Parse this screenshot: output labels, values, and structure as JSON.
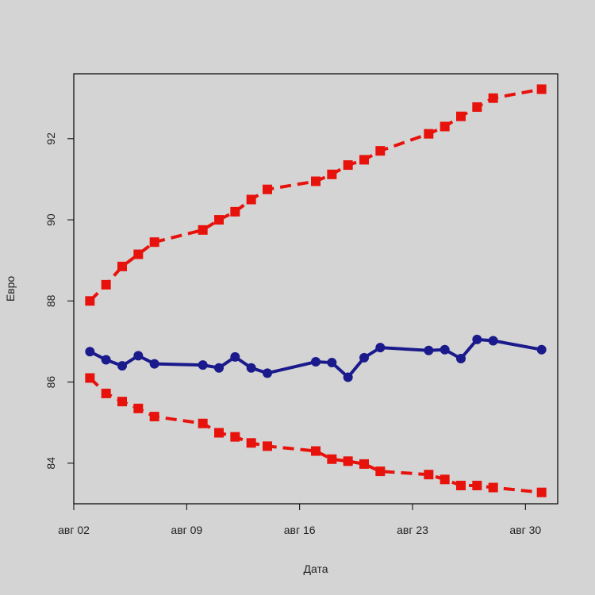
{
  "chart_data": {
    "type": "line",
    "title": "",
    "xlabel": "Дата",
    "ylabel": "Евро",
    "x_tick_labels": [
      "авг 02",
      "авг 09",
      "авг 16",
      "авг 23",
      "авг 30"
    ],
    "x_tick_days": [
      2,
      9,
      16,
      23,
      30
    ],
    "xlim": [
      2,
      32
    ],
    "y_ticks": [
      84,
      86,
      88,
      90,
      92
    ],
    "ylim": [
      83,
      93.6
    ],
    "x_days": [
      3,
      4,
      5,
      6,
      7,
      10,
      11,
      12,
      13,
      14,
      17,
      18,
      19,
      20,
      21,
      24,
      25,
      26,
      27,
      28,
      31
    ],
    "series": [
      {
        "color": "#1a1a8c",
        "line_style": "solid",
        "marker": "circle",
        "values": [
          86.75,
          86.55,
          86.4,
          86.65,
          86.45,
          86.42,
          86.35,
          86.62,
          86.35,
          86.22,
          86.5,
          86.48,
          86.12,
          86.6,
          86.85,
          86.78,
          86.8,
          86.58,
          87.05,
          87.02,
          86.8
        ]
      },
      {
        "color": "#e8120c",
        "line_style": "dashed",
        "marker": "square",
        "values": [
          88.0,
          88.4,
          88.85,
          89.15,
          89.45,
          89.75,
          90.0,
          90.2,
          90.5,
          90.75,
          90.95,
          91.12,
          91.35,
          91.48,
          91.7,
          92.12,
          92.3,
          92.55,
          92.78,
          93.0,
          93.22
        ]
      },
      {
        "color": "#e8120c",
        "line_style": "dashed",
        "marker": "square",
        "values": [
          86.1,
          85.72,
          85.52,
          85.35,
          85.15,
          84.98,
          84.75,
          84.65,
          84.5,
          84.42,
          84.3,
          84.1,
          84.05,
          83.98,
          83.8,
          83.72,
          83.6,
          83.45,
          83.45,
          83.4,
          83.28
        ]
      }
    ]
  }
}
